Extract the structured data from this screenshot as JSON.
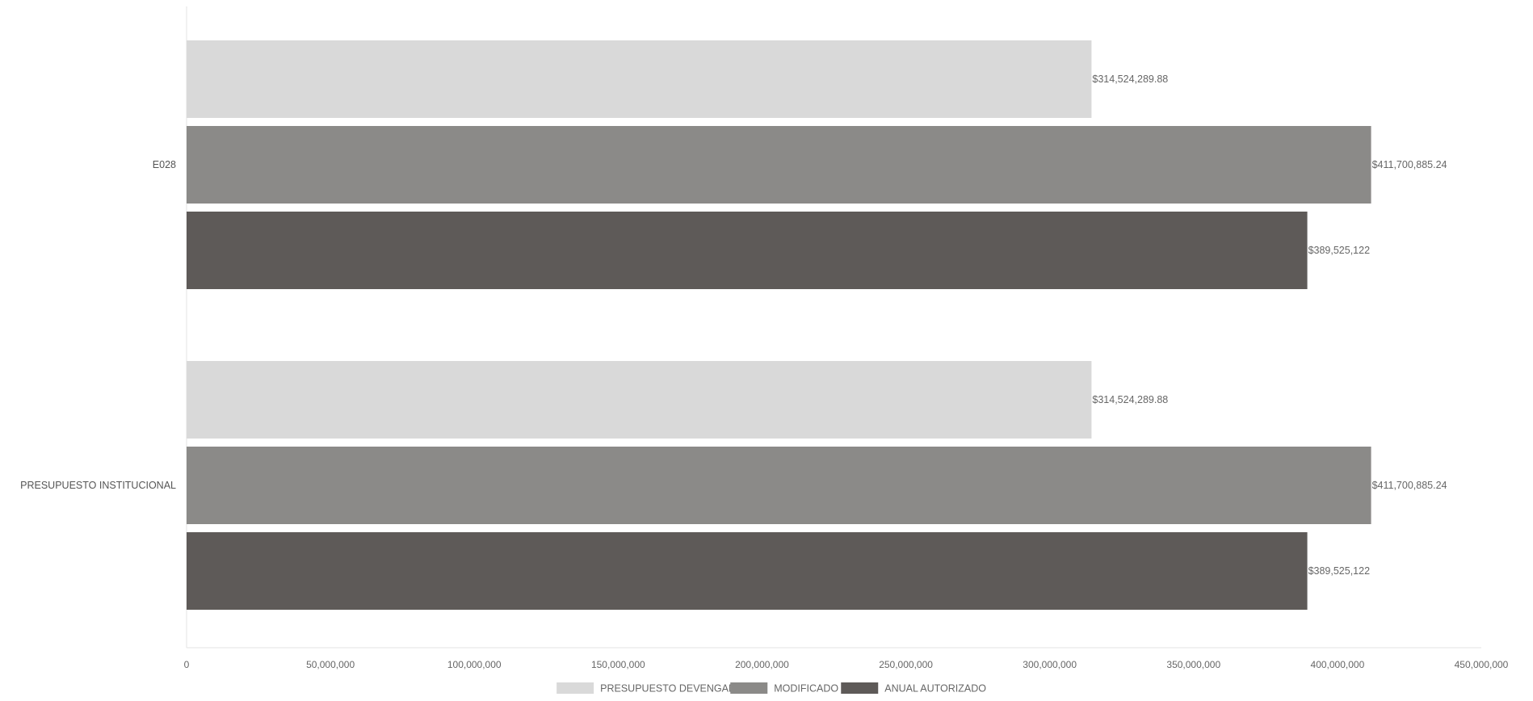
{
  "chart_data": {
    "type": "bar",
    "orientation": "horizontal",
    "categories": [
      "E028",
      "PRESUPUESTO INSTITUCIONAL"
    ],
    "series": [
      {
        "name": "PRESUPUESTO DEVENGADO",
        "color": "#d9d9d9",
        "values": [
          314524289.88,
          314524289.88
        ],
        "labels": [
          "$314,524,289.88",
          "$314,524,289.88"
        ]
      },
      {
        "name": "MODIFICADO",
        "color": "#8b8a88",
        "values": [
          411700885.24,
          411700885.24
        ],
        "labels": [
          "$411,700,885.24",
          "$411,700,885.24"
        ]
      },
      {
        "name": "ANUAL AUTORIZADO",
        "color": "#5e5a58",
        "values": [
          389525122,
          389525122
        ],
        "labels": [
          "$389,525,122",
          "$389,525,122"
        ]
      }
    ],
    "xlim": [
      0,
      450000000
    ],
    "x_ticks": [
      0,
      50000000,
      100000000,
      150000000,
      200000000,
      250000000,
      300000000,
      350000000,
      400000000,
      450000000
    ],
    "x_tick_labels": [
      "0",
      "50,000,000",
      "100,000,000",
      "150,000,000",
      "200,000,000",
      "250,000,000",
      "300,000,000",
      "350,000,000",
      "400,000,000",
      "450,000,000"
    ],
    "legend_position": "bottom-center",
    "grid": false,
    "title": "",
    "xlabel": "",
    "ylabel": ""
  }
}
